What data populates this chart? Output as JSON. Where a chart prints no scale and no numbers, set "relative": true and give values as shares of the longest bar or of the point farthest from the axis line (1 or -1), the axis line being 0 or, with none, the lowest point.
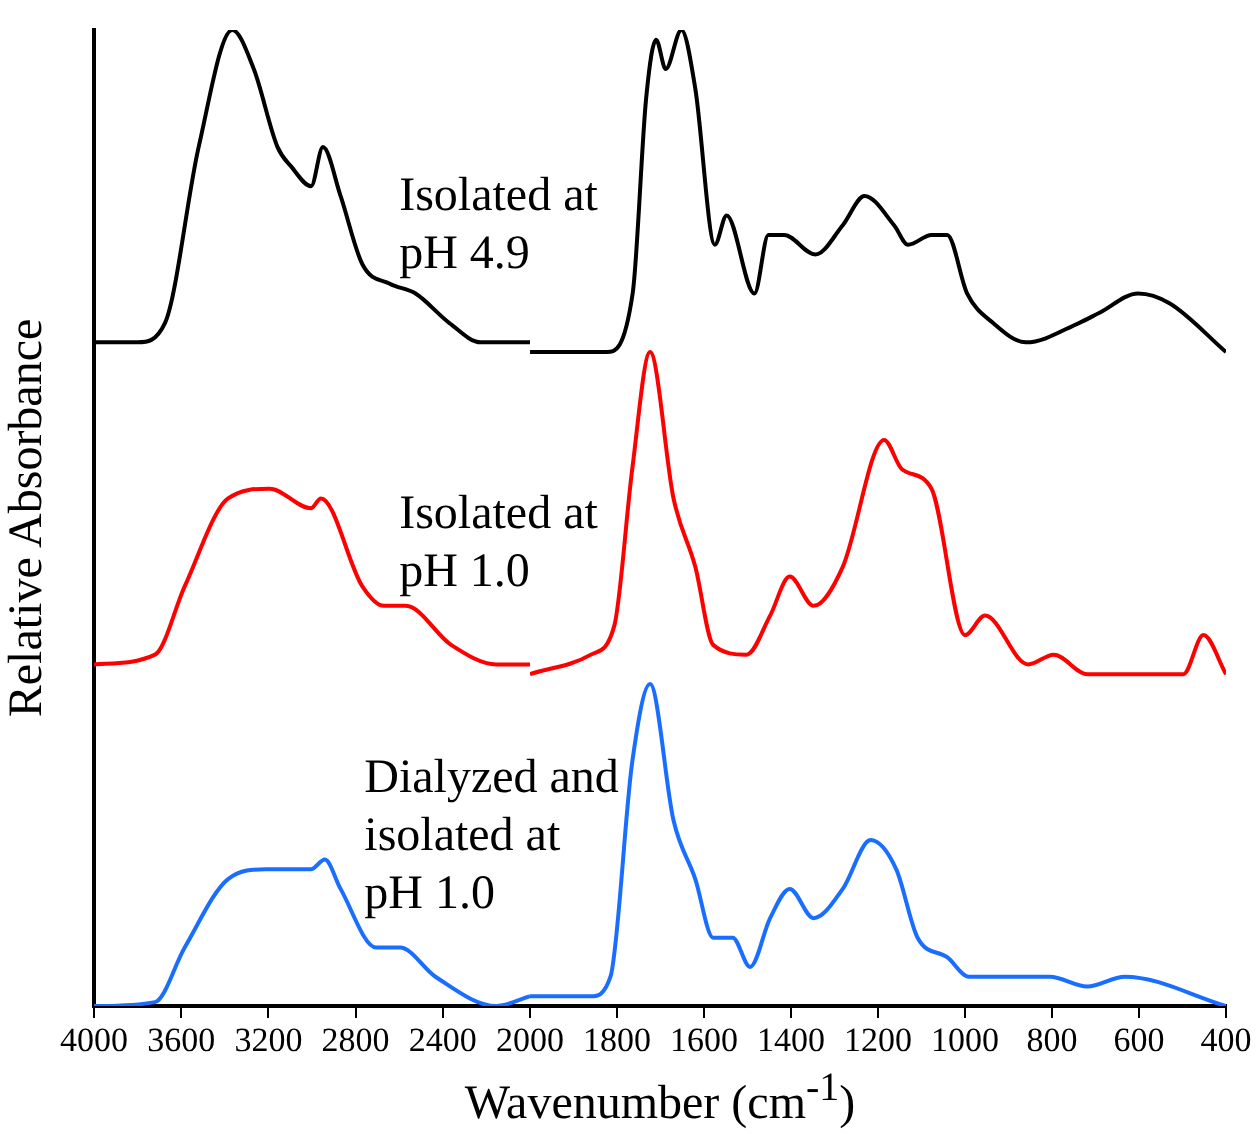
{
  "chart_data": [
    {
      "type": "line",
      "relative": true,
      "ylabel": "Relative Absorbance",
      "xlim": [
        4000,
        2000
      ],
      "xticks": [
        4000,
        3600,
        3200,
        2800,
        2400,
        2000
      ],
      "grid": false,
      "marker": "none",
      "series": [
        {
          "name": "Isolated at pH 4.9",
          "color": "#000000",
          "x": [
            4000,
            3800,
            3674,
            3520,
            3366,
            3267,
            3158,
            3095,
            3004,
            2950,
            2869,
            2769,
            2643,
            2525,
            2371,
            2226,
            2000
          ],
          "values": [
            0.68,
            0.68,
            0.7,
            0.88,
            1,
            0.96,
            0.88,
            0.86,
            0.84,
            0.88,
            0.83,
            0.76,
            0.74,
            0.73,
            0.7,
            0.68,
            0.68
          ]
        },
        {
          "name": "Isolated at pH 1.0",
          "color": "#ff0000",
          "x": [
            4000,
            3720,
            3584,
            3385,
            3195,
            3005,
            2959,
            2769,
            2670,
            2570,
            2362,
            2154,
            2000
          ],
          "values": [
            0.35,
            0.36,
            0.43,
            0.52,
            0.53,
            0.51,
            0.52,
            0.43,
            0.41,
            0.41,
            0.37,
            0.35,
            0.35
          ]
        },
        {
          "name": "Dialyzed and isolated at pH 1.0",
          "color": "#1a6eff",
          "x": [
            4000,
            3720,
            3584,
            3385,
            3213,
            3005,
            2941,
            2869,
            2706,
            2597,
            2434,
            2154,
            2000
          ],
          "values": [
            0,
            0.004,
            0.06,
            0.13,
            0.14,
            0.14,
            0.15,
            0.12,
            0.06,
            0.06,
            0.03,
            0,
            0.01
          ]
        }
      ]
    },
    {
      "type": "line",
      "relative": true,
      "xlabel": "Wavenumber (cm$^{-1}$)",
      "xlim": [
        2000,
        400
      ],
      "xticks": [
        1800,
        1600,
        1400,
        1200,
        1000,
        800,
        600,
        400
      ],
      "grid": false,
      "marker": "none",
      "series": [
        {
          "color": "#000000",
          "x": [
            2000,
            1824,
            1764,
            1733,
            1710,
            1688,
            1652,
            1620,
            1575,
            1548,
            1484,
            1452,
            1416,
            1344,
            1281,
            1231,
            1163,
            1131,
            1077,
            1041,
            995,
            936,
            860,
            737,
            692,
            602,
            530,
            400
          ],
          "values": [
            0.67,
            0.67,
            0.73,
            0.93,
            0.99,
            0.96,
            1,
            0.94,
            0.78,
            0.81,
            0.73,
            0.79,
            0.79,
            0.77,
            0.8,
            0.83,
            0.8,
            0.78,
            0.79,
            0.79,
            0.73,
            0.7,
            0.68,
            0.7,
            0.71,
            0.73,
            0.72,
            0.67
          ]
        },
        {
          "color": "#ff0000",
          "x": [
            2000,
            1860,
            1806,
            1765,
            1724,
            1670,
            1620,
            1579,
            1502,
            1448,
            1403,
            1348,
            1281,
            1186,
            1145,
            1077,
            1000,
            954,
            855,
            796,
            719,
            498,
            452,
            400
          ],
          "values": [
            0.34,
            0.36,
            0.39,
            0.55,
            0.67,
            0.52,
            0.45,
            0.37,
            0.36,
            0.4,
            0.44,
            0.41,
            0.45,
            0.58,
            0.55,
            0.53,
            0.38,
            0.4,
            0.35,
            0.36,
            0.34,
            0.34,
            0.38,
            0.34
          ]
        },
        {
          "color": "#1a6eff",
          "x": [
            2000,
            1860,
            1815,
            1765,
            1724,
            1670,
            1620,
            1579,
            1534,
            1494,
            1448,
            1403,
            1348,
            1281,
            1217,
            1158,
            1109,
            1041,
            991,
            923,
            805,
            719,
            633,
            400
          ],
          "values": [
            0.01,
            0.01,
            0.03,
            0.25,
            0.33,
            0.19,
            0.13,
            0.07,
            0.07,
            0.04,
            0.09,
            0.12,
            0.09,
            0.12,
            0.17,
            0.14,
            0.07,
            0.05,
            0.03,
            0.03,
            0.03,
            0.02,
            0.03,
            0
          ]
        }
      ]
    }
  ]
}
